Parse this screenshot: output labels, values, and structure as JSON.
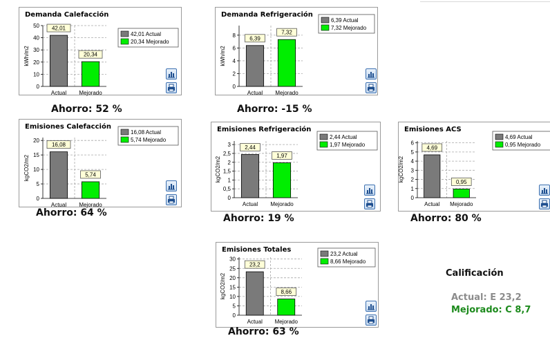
{
  "legend_labels": [
    "Actual",
    "Mejorado"
  ],
  "colors": {
    "actual": "#7a7a7a",
    "improved": "#00ee00",
    "label_box": "#ffffd8",
    "grid": "#a8a8a8"
  },
  "icons": {
    "chart": "bar-chart-icon",
    "print": "print-icon"
  },
  "chart_data": [
    {
      "type": "bar",
      "title": "Demanda Calefacción",
      "ylabel": "kWh/m2",
      "categories": [
        "Actual",
        "Mejorado"
      ],
      "values": [
        42.01,
        20.34
      ],
      "value_labels": [
        "42,01",
        "20,34"
      ],
      "ylim": [
        0,
        50
      ],
      "yticks": [
        0,
        10,
        20,
        30,
        40,
        50
      ],
      "legend": [
        "42,01 Actual",
        "20,34 Mejorado"
      ],
      "legend_position": "right",
      "grid": true,
      "savings": "Ahorro: 52 %"
    },
    {
      "type": "bar",
      "title": "Demanda Refrigeración",
      "ylabel": "kWh/m2",
      "categories": [
        "Actual",
        "Mejorado"
      ],
      "values": [
        6.39,
        7.32
      ],
      "value_labels": [
        "6,39",
        "7,32"
      ],
      "ylim": [
        0,
        9.5
      ],
      "yticks": [
        0,
        2,
        4,
        6,
        8
      ],
      "legend": [
        "6,39 Actual",
        "7,32 Mejorado"
      ],
      "legend_position": "top-right",
      "grid": true,
      "savings": "Ahorro: -15 %"
    },
    {
      "type": "bar",
      "title": "Emisiones Calefacción",
      "ylabel": "kgCO2/m2",
      "categories": [
        "Actual",
        "Mejorado"
      ],
      "values": [
        16.08,
        5.74
      ],
      "value_labels": [
        "16,08",
        "5,74"
      ],
      "ylim": [
        0,
        21
      ],
      "yticks": [
        0,
        5,
        10,
        15,
        20
      ],
      "legend": [
        "16,08 Actual",
        "5,74 Mejorado"
      ],
      "legend_position": "top-right",
      "grid": true,
      "savings": "Ahorro: 64 %"
    },
    {
      "type": "bar",
      "title": "Emisiones Refrigeración",
      "ylabel": "kgCO2/m2",
      "categories": [
        "Actual",
        "Mejorado"
      ],
      "values": [
        2.44,
        1.97
      ],
      "value_labels": [
        "2,44",
        "1,97"
      ],
      "ylim": [
        0,
        3.2
      ],
      "yticks": [
        0,
        0.5,
        1,
        1.5,
        2,
        2.5,
        3
      ],
      "ytick_labels": [
        "0",
        "0,5",
        "1",
        "1,5",
        "2",
        "2,5",
        "3"
      ],
      "legend": [
        "2,44 Actual",
        "1,97 Mejorado"
      ],
      "legend_position": "top-right",
      "grid": true,
      "savings": "Ahorro: 19 %"
    },
    {
      "type": "bar",
      "title": "Emisiones ACS",
      "ylabel": "kgCO2/m2",
      "categories": [
        "Actual",
        "Mejorado"
      ],
      "values": [
        4.69,
        0.95
      ],
      "value_labels": [
        "4,69",
        "0,95"
      ],
      "ylim": [
        0,
        6.2
      ],
      "yticks": [
        0,
        1,
        2,
        3,
        4,
        5,
        6
      ],
      "legend": [
        "4,69 Actual",
        "0,95 Mejorado"
      ],
      "legend_position": "top-right",
      "grid": true,
      "savings": "Ahorro: 80 %"
    },
    {
      "type": "bar",
      "title": "Emisiones Totales",
      "ylabel": "kgCO2/m2",
      "categories": [
        "Actual",
        "Mejorado"
      ],
      "values": [
        23.2,
        8.66
      ],
      "value_labels": [
        "23,2",
        "8,66"
      ],
      "ylim": [
        0,
        31
      ],
      "yticks": [
        0,
        5,
        10,
        15,
        20,
        25,
        30
      ],
      "legend": [
        "23,2 Actual",
        "8,66 Mejorado"
      ],
      "legend_position": "top-right",
      "grid": true,
      "savings": "Ahorro: 63 %"
    }
  ],
  "rating": {
    "title": "Calificación",
    "current": "Actual: E 23,2",
    "improved": "Mejorado: C 8,7"
  }
}
